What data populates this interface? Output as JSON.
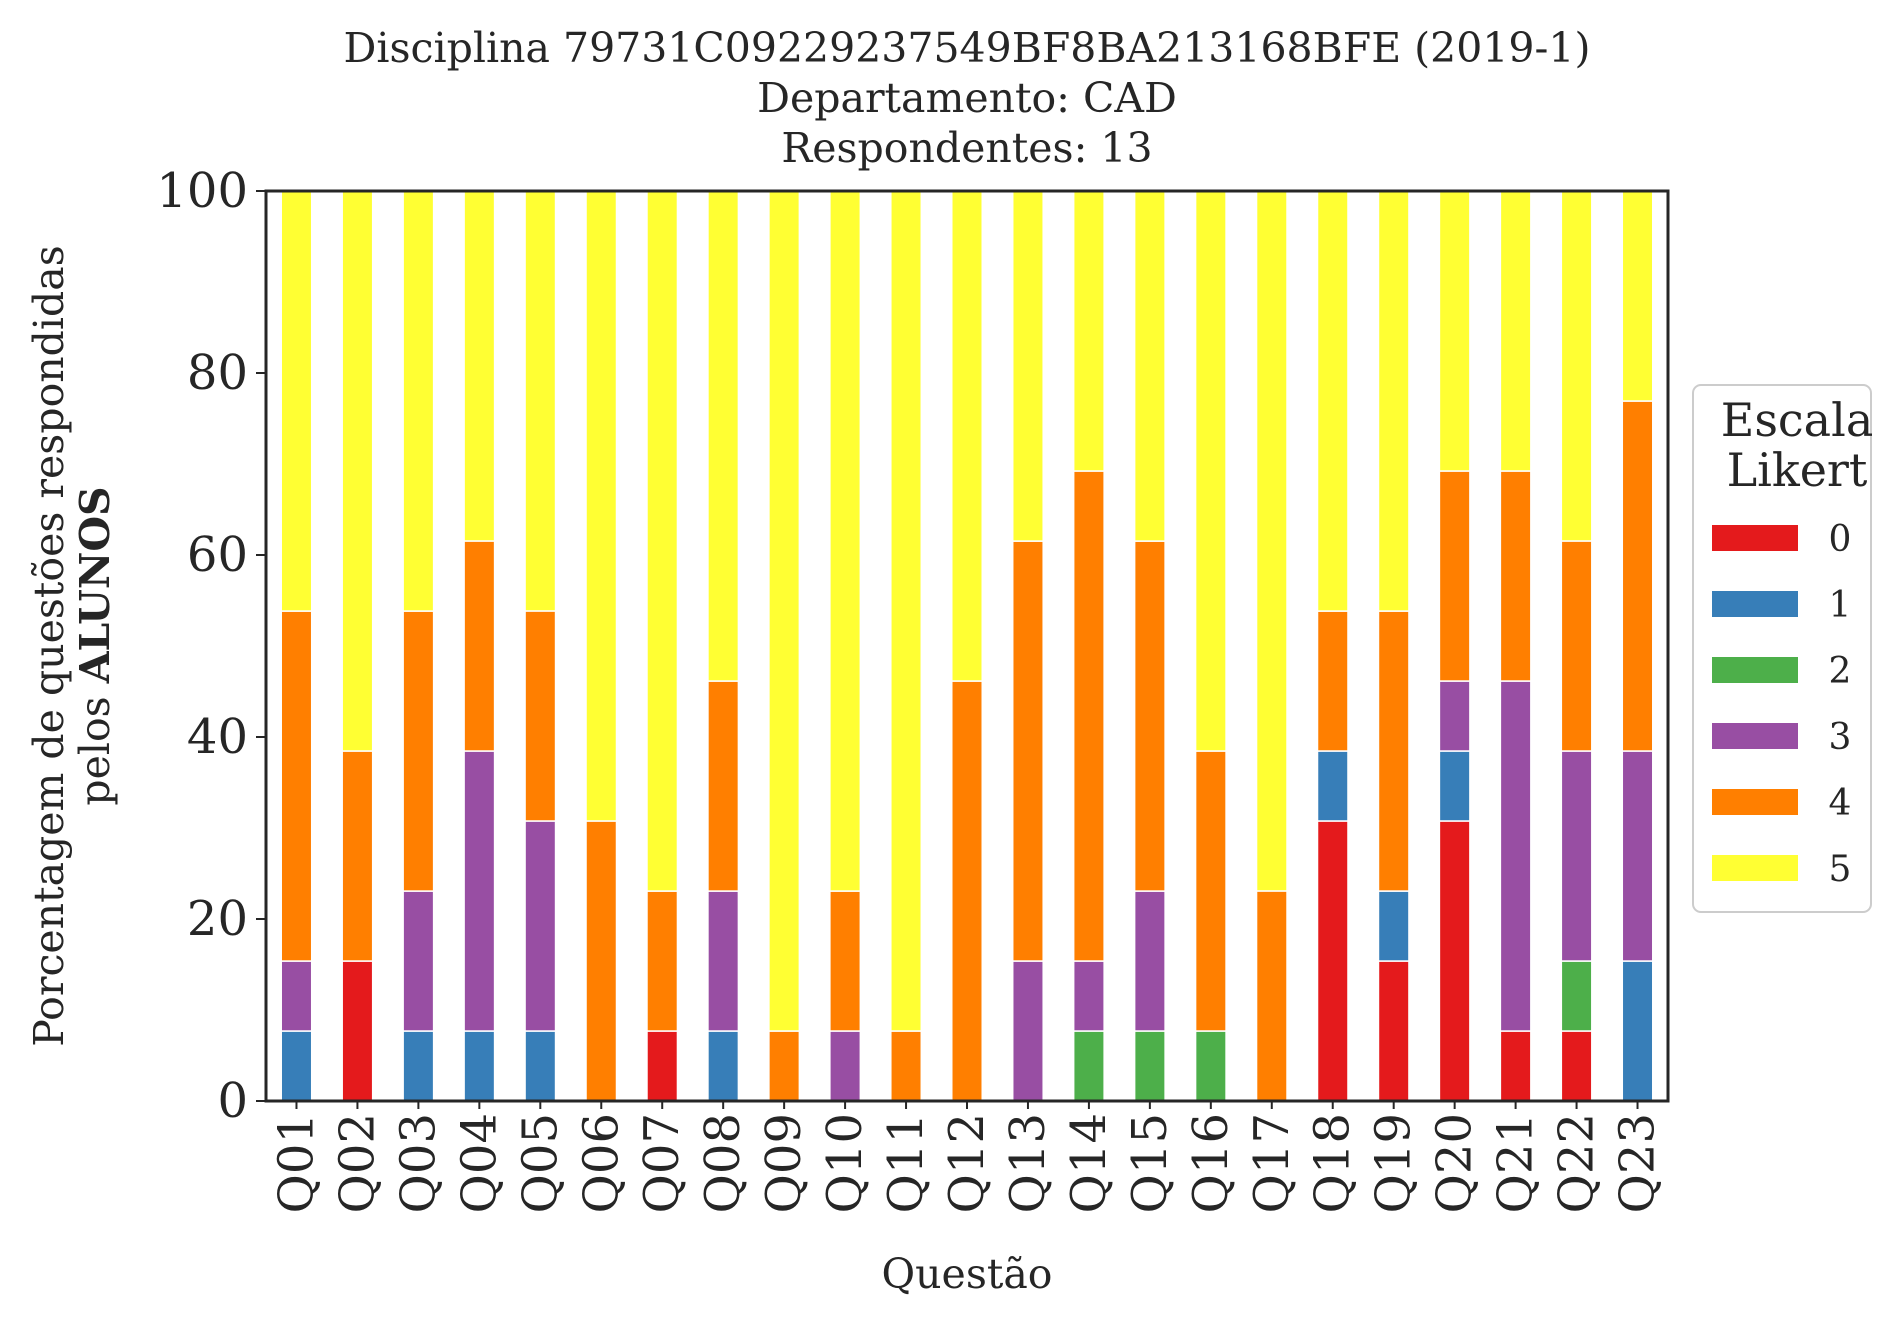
{
  "chart_data": {
    "type": "bar",
    "stacked": true,
    "title_lines": [
      "Disciplina 79731C09229237549BF8BA213168BFE (2019-1)",
      "Departamento: CAD",
      "Respondentes: 13"
    ],
    "xlabel": "Questão",
    "ylabel_line1": "Porcentagem de questões respondidas",
    "ylabel_line2_prefix": "pelos ",
    "ylabel_line2_bold": "ALUNOS",
    "ylim": [
      0,
      100
    ],
    "yticks": [
      0,
      20,
      40,
      60,
      80,
      100
    ],
    "grid": false,
    "legend": {
      "title_lines": [
        "Escala",
        "Likert"
      ],
      "position": "right"
    },
    "categories": [
      "Q01",
      "Q02",
      "Q03",
      "Q04",
      "Q05",
      "Q06",
      "Q07",
      "Q08",
      "Q09",
      "Q10",
      "Q11",
      "Q12",
      "Q13",
      "Q14",
      "Q15",
      "Q16",
      "Q17",
      "Q18",
      "Q19",
      "Q20",
      "Q21",
      "Q22",
      "Q23"
    ],
    "series": [
      {
        "name": "0",
        "color": "#e41a1c",
        "values": [
          0,
          15.38,
          0,
          0,
          0,
          0,
          7.69,
          0,
          0,
          0,
          0,
          0,
          0,
          0,
          0,
          0,
          0,
          30.77,
          15.38,
          30.77,
          7.69,
          7.69,
          0
        ]
      },
      {
        "name": "1",
        "color": "#377eb8",
        "values": [
          7.69,
          0,
          7.69,
          7.69,
          7.69,
          0,
          0,
          7.69,
          0,
          0,
          0,
          0,
          0,
          0,
          0,
          0,
          0,
          7.69,
          7.69,
          7.69,
          0,
          0,
          15.38
        ]
      },
      {
        "name": "2",
        "color": "#4daf4a",
        "values": [
          0,
          0,
          0,
          0,
          0,
          0,
          0,
          0,
          0,
          0,
          0,
          0,
          0,
          7.69,
          7.69,
          7.69,
          0,
          0,
          0,
          0,
          0,
          7.69,
          0
        ]
      },
      {
        "name": "3",
        "color": "#984ea3",
        "values": [
          7.69,
          0,
          15.38,
          30.77,
          23.08,
          0,
          0,
          15.38,
          0,
          7.69,
          0,
          0,
          15.38,
          7.69,
          15.38,
          0,
          0,
          0,
          0,
          7.69,
          38.46,
          23.08,
          23.08
        ]
      },
      {
        "name": "4",
        "color": "#ff7f00",
        "values": [
          38.46,
          23.08,
          30.77,
          23.08,
          23.08,
          30.77,
          15.38,
          23.08,
          7.69,
          15.38,
          7.69,
          46.15,
          46.15,
          53.85,
          38.46,
          30.77,
          23.08,
          15.38,
          30.77,
          23.08,
          23.08,
          23.08,
          38.46
        ]
      },
      {
        "name": "5",
        "color": "#ffff33",
        "values": [
          46.15,
          61.54,
          46.15,
          38.46,
          46.15,
          69.23,
          76.92,
          53.85,
          92.31,
          76.92,
          92.31,
          53.85,
          38.46,
          30.77,
          38.46,
          61.54,
          76.92,
          46.15,
          46.15,
          30.77,
          30.77,
          38.46,
          23.08
        ]
      }
    ]
  }
}
